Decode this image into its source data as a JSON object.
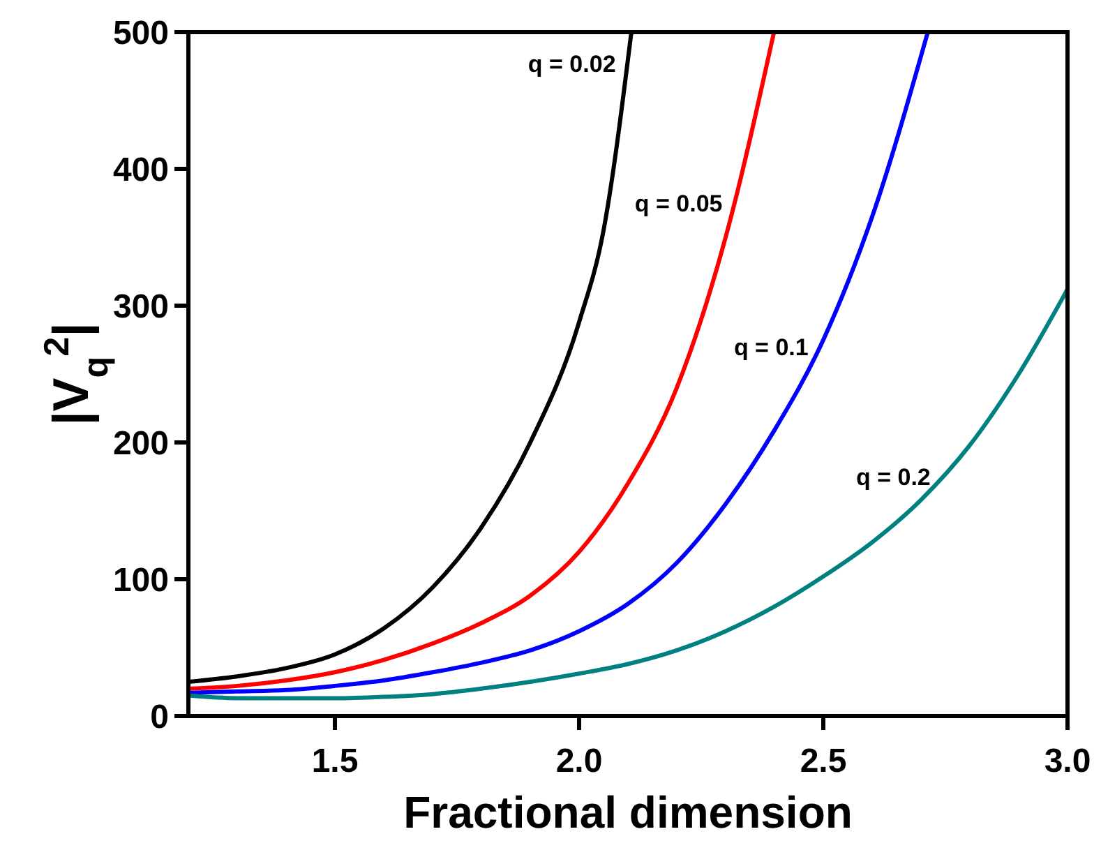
{
  "chart_data": {
    "type": "line",
    "xlabel": "Fractional dimension",
    "ylabel": "|V$_{q}$$^{2}$|",
    "xlim": [
      1.2,
      3.0
    ],
    "ylim": [
      0,
      500
    ],
    "xticks": [
      1.5,
      {
        "value": 2,
        "label": "2.0"
      },
      2.5,
      {
        "value": 3,
        "label": "3.0"
      }
    ],
    "yticks": [
      0,
      100,
      200,
      300,
      400,
      500
    ],
    "grid": false,
    "line_style": "solid",
    "series": [
      {
        "name": "q = 0.02",
        "color": "#000000",
        "x": [
          1.2,
          1.3,
          1.4,
          1.5,
          1.6,
          1.7,
          1.8,
          1.9,
          2.0,
          2.05,
          2.107
        ],
        "values": [
          25,
          29,
          35,
          45,
          64,
          94,
          138,
          200,
          288,
          355,
          500
        ]
      },
      {
        "name": "q = 0.05",
        "color": "#ff0000",
        "x": [
          1.2,
          1.3,
          1.4,
          1.5,
          1.6,
          1.7,
          1.8,
          1.9,
          2.0,
          2.1,
          2.2,
          2.3,
          2.399
        ],
        "values": [
          20,
          22,
          26,
          32,
          41,
          53,
          68,
          88,
          120,
          170,
          240,
          350,
          500
        ]
      },
      {
        "name": "q = 0.1",
        "color": "#0000ff",
        "x": [
          1.2,
          1.3,
          1.4,
          1.5,
          1.6,
          1.7,
          1.8,
          1.9,
          2.0,
          2.1,
          2.2,
          2.3,
          2.4,
          2.5,
          2.6,
          2.714
        ],
        "values": [
          17,
          18,
          19,
          22,
          26,
          32,
          39,
          48,
          62,
          82,
          112,
          155,
          209,
          275,
          365,
          500
        ]
      },
      {
        "name": "q = 0.2",
        "color": "#008080",
        "x": [
          1.2,
          1.3,
          1.4,
          1.5,
          1.6,
          1.7,
          1.8,
          1.9,
          2.0,
          2.1,
          2.2,
          2.3,
          2.4,
          2.5,
          2.6,
          2.7,
          2.8,
          2.9,
          3.0
        ],
        "values": [
          15,
          13,
          13,
          13,
          14,
          16,
          20,
          25,
          31,
          38,
          48,
          62,
          80,
          102,
          127,
          158,
          198,
          250,
          312
        ]
      }
    ]
  }
}
